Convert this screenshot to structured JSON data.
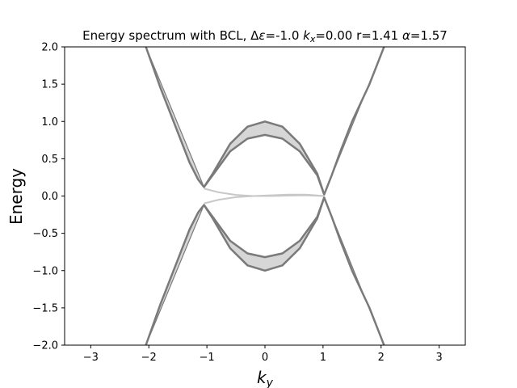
{
  "chart_data": {
    "type": "line",
    "title": {
      "prefix": "Energy spectrum with BCL, Δ",
      "eps": "ε",
      "mid1": "=-1.0 ",
      "k": "k",
      "ksub": "x",
      "mid2": "=0.00 r=1.41 ",
      "alpha": "α",
      "suffix": "=1.57"
    },
    "xlabel": {
      "main": "k",
      "sub": "y"
    },
    "ylabel": "Energy",
    "xlim": [
      -3.45,
      3.45
    ],
    "ylim": [
      -2.0,
      2.0
    ],
    "xticks": [
      -3,
      -2,
      -1,
      0,
      1,
      2,
      3
    ],
    "xtick_labels": [
      "−3",
      "−2",
      "−1",
      "0",
      "1",
      "2",
      "3"
    ],
    "yticks": [
      2.0,
      1.5,
      1.0,
      0.5,
      0.0,
      -0.5,
      -1.0,
      -1.5,
      -2.0
    ],
    "ytick_labels": [
      "2.0",
      "1.5",
      "1.0",
      "0.5",
      "0.0",
      "−0.5",
      "−1.0",
      "−1.5",
      "−2.0"
    ],
    "grid": false,
    "bulk_band_color": "#7a7a7a",
    "bulk_band_fill": "#d6d6d6",
    "bands": {
      "upper_outer": {
        "x": [
          -2.05,
          -1.8,
          -1.5,
          -1.3,
          -1.15,
          -1.05,
          -0.9,
          -0.6,
          -0.3,
          0.0,
          0.3,
          0.6,
          0.9,
          1.02,
          1.15,
          1.3,
          1.5,
          1.8,
          2.05
        ],
        "y": [
          2.0,
          1.45,
          0.85,
          0.45,
          0.22,
          0.12,
          0.3,
          0.7,
          0.93,
          1.0,
          0.93,
          0.7,
          0.3,
          0.02,
          0.28,
          0.6,
          1.0,
          1.5,
          2.0
        ]
      },
      "upper_inner": {
        "x": [
          -1.05,
          -0.9,
          -0.6,
          -0.3,
          0.0,
          0.3,
          0.6,
          0.9,
          1.02
        ],
        "y": [
          0.12,
          0.28,
          0.6,
          0.77,
          0.82,
          0.77,
          0.6,
          0.28,
          0.02
        ]
      },
      "lower_outer": {
        "x": [
          -2.05,
          -1.8,
          -1.5,
          -1.3,
          -1.15,
          -1.05,
          -0.9,
          -0.6,
          -0.3,
          0.0,
          0.3,
          0.6,
          0.9,
          1.02,
          1.15,
          1.3,
          1.5,
          1.8,
          2.05
        ],
        "y": [
          -2.0,
          -1.45,
          -0.85,
          -0.45,
          -0.22,
          -0.12,
          -0.3,
          -0.7,
          -0.93,
          -1.0,
          -0.93,
          -0.7,
          -0.3,
          -0.02,
          -0.28,
          -0.6,
          -1.0,
          -1.5,
          -2.0
        ]
      },
      "lower_inner": {
        "x": [
          -1.05,
          -0.9,
          -0.6,
          -0.3,
          0.0,
          0.3,
          0.6,
          0.9,
          1.02
        ],
        "y": [
          -0.12,
          -0.28,
          -0.6,
          -0.77,
          -0.82,
          -0.77,
          -0.6,
          -0.28,
          -0.02
        ]
      }
    },
    "edge_states": {
      "color": "#c8c8c8",
      "series": [
        {
          "x": [
            -1.05,
            -0.8,
            -0.5,
            -0.2,
            0.1,
            0.4,
            0.7,
            1.02
          ],
          "y": [
            0.1,
            0.05,
            0.015,
            0.0,
            0.0,
            0.005,
            0.01,
            0.0
          ]
        },
        {
          "x": [
            -1.05,
            -0.8,
            -0.5,
            -0.2,
            0.1,
            0.4,
            0.7,
            1.02
          ],
          "y": [
            -0.1,
            -0.05,
            -0.015,
            0.0,
            0.01,
            0.02,
            0.02,
            0.0
          ]
        }
      ]
    }
  }
}
